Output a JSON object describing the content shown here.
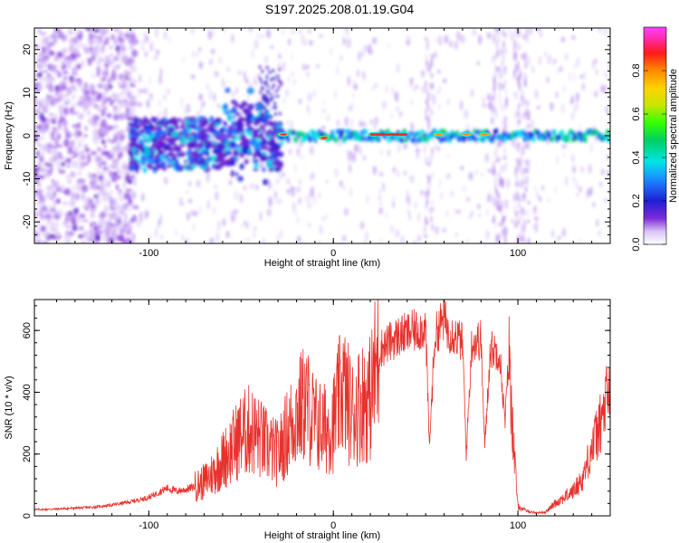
{
  "title": "S197.2025.208.01.19.G04",
  "colors": {
    "snr_line": "#e8322d",
    "signal_peak": "#e52a2a",
    "noise": "#8a2be2"
  },
  "chart_data": [
    {
      "type": "heatmap",
      "xlabel": "Height of straight line (km)",
      "ylabel": "Frequency (Hz)",
      "xlim": [
        -162,
        150
      ],
      "ylim": [
        -25,
        25
      ],
      "xticks": [
        -100,
        0,
        100
      ],
      "yticks": [
        -20,
        -10,
        0,
        10,
        20
      ],
      "grid": false,
      "colorbar": {
        "label": "Normalized spectral amplitude",
        "range": [
          0,
          1
        ],
        "ticks": [
          0.0,
          0.2,
          0.4,
          0.6,
          0.8
        ],
        "colormap": "gist_ncar-like (purple-blue-cyan-green-yellow-red-magenta)"
      },
      "features": [
        {
          "description": "diffuse noise",
          "x_range": [
            -162,
            -110
          ],
          "freq_range": [
            -25,
            25
          ],
          "amplitude": 0.1
        },
        {
          "description": "broadband patch",
          "x_range": [
            -110,
            -30
          ],
          "freq_range": [
            -8,
            5
          ],
          "amplitude": 0.3
        },
        {
          "description": "line at 0 Hz",
          "x_range": [
            -30,
            150
          ],
          "freq": 0,
          "amplitude": 0.5
        },
        {
          "description": "peak",
          "x": -27,
          "freq": 0.3,
          "amplitude": 0.95
        },
        {
          "description": "peak",
          "x": -5,
          "freq": -0.5,
          "amplitude": 0.95
        },
        {
          "description": "peak",
          "x": 22,
          "freq": 0.3,
          "amplitude": 1.0
        },
        {
          "description": "peak",
          "x": 30,
          "freq": 0.3,
          "amplitude": 1.0
        },
        {
          "description": "peak",
          "x": 37,
          "freq": 0.3,
          "amplitude": 1.0
        },
        {
          "description": "peak",
          "x": 57,
          "freq": 0.3,
          "amplitude": 0.9
        },
        {
          "description": "peak",
          "x": 72,
          "freq": 0.3,
          "amplitude": 0.9
        },
        {
          "description": "peak",
          "x": 82,
          "freq": 0.3,
          "amplitude": 0.9
        }
      ]
    },
    {
      "type": "line",
      "xlabel": "Height of straight line (km)",
      "ylabel": "SNR (10 * v/v)",
      "xlim": [
        -162,
        150
      ],
      "ylim": [
        0,
        700
      ],
      "xticks": [
        -100,
        0,
        100
      ],
      "yticks": [
        0,
        200,
        400,
        600
      ],
      "grid": false,
      "series": [
        {
          "x": [
            -162,
            -150,
            -140,
            -130,
            -120,
            -110,
            -100,
            -95,
            -90,
            -85,
            -80,
            -75,
            -70,
            -65,
            -60,
            -55,
            -50,
            -45,
            -40,
            -35,
            -30,
            -25,
            -20,
            -15,
            -10,
            -5,
            0,
            5,
            10,
            15,
            20,
            23,
            25,
            30,
            35,
            40,
            45,
            50,
            52,
            55,
            58,
            60,
            62,
            65,
            70,
            72,
            75,
            80,
            82,
            85,
            90,
            93,
            95,
            98,
            100,
            105,
            110,
            115,
            120,
            125,
            130,
            135,
            140,
            145,
            150
          ],
          "y": [
            20,
            22,
            25,
            28,
            35,
            45,
            60,
            75,
            90,
            80,
            85,
            95,
            110,
            140,
            180,
            220,
            260,
            280,
            250,
            220,
            200,
            270,
            330,
            370,
            300,
            280,
            300,
            420,
            330,
            370,
            380,
            480,
            540,
            560,
            580,
            590,
            600,
            610,
            220,
            580,
            620,
            640,
            600,
            590,
            560,
            200,
            560,
            570,
            220,
            540,
            530,
            300,
            520,
            200,
            30,
            15,
            10,
            12,
            40,
            60,
            80,
            120,
            220,
            300,
            420
          ]
        }
      ]
    }
  ]
}
